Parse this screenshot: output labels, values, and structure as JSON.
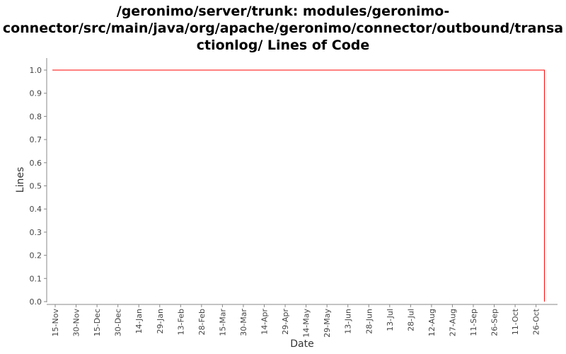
{
  "chart_data": {
    "type": "line",
    "title_lines": [
      "/geronimo/server/trunk: modules/geronimo-",
      "connector/src/main/java/org/apache/geronimo/connector/outbound/transa",
      "ctionlog/ Lines of Code"
    ],
    "xlabel": "Date",
    "ylabel": "Lines",
    "ylim": [
      0.0,
      1.0
    ],
    "yticks": [
      "0.0",
      "0.1",
      "0.2",
      "0.3",
      "0.4",
      "0.5",
      "0.6",
      "0.7",
      "0.8",
      "0.9",
      "1.0"
    ],
    "xticks": [
      "15-Nov",
      "30-Nov",
      "15-Dec",
      "30-Dec",
      "14-Jan",
      "29-Jan",
      "13-Feb",
      "28-Feb",
      "15-Mar",
      "30-Mar",
      "14-Apr",
      "29-Apr",
      "14-May",
      "29-May",
      "13-Jun",
      "28-Jun",
      "13-Jul",
      "28-Jul",
      "12-Aug",
      "27-Aug",
      "11-Sep",
      "26-Sep",
      "11-Oct",
      "26-Oct"
    ],
    "series": [
      {
        "color": "#ff0000",
        "step": true,
        "points": [
          {
            "x": "13-Nov",
            "y": 1
          },
          {
            "x": "1-Nov",
            "y": 1
          },
          {
            "x": "1-Nov",
            "y": 0
          }
        ]
      }
    ],
    "grid": false,
    "legend": "none"
  }
}
